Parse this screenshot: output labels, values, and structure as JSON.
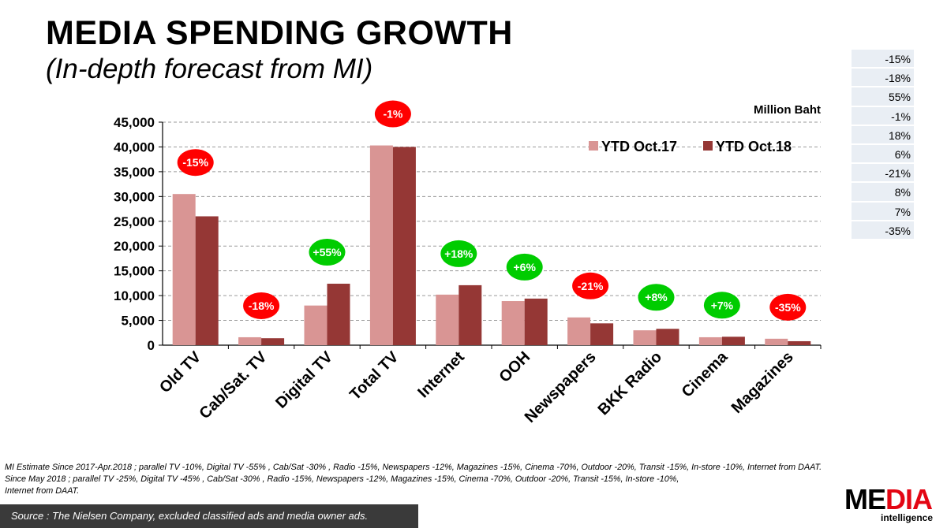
{
  "header": {
    "title": "MEDIA SPENDING GROWTH",
    "subtitle": "(In-depth forecast from MI)"
  },
  "side_table": [
    "-15%",
    "-18%",
    "55%",
    "-1%",
    "18%",
    "6%",
    "-21%",
    "8%",
    "7%",
    "-35%"
  ],
  "chart_data": {
    "type": "bar",
    "title": "",
    "unit_label": "Million Baht",
    "categories": [
      "Old TV",
      "Cab/Sat. TV",
      "Digital TV",
      "Total TV",
      "Internet",
      "OOH",
      "Newspapers",
      "BKK Radio",
      "Cinema",
      "Magazines"
    ],
    "series": [
      {
        "name": "YTD Oct.17",
        "color": "#d99594",
        "values": [
          30500,
          1600,
          8000,
          40300,
          10200,
          8900,
          5600,
          3000,
          1600,
          1300
        ]
      },
      {
        "name": "YTD Oct.18",
        "color": "#953735",
        "values": [
          26000,
          1400,
          12400,
          40000,
          12100,
          9400,
          4400,
          3300,
          1700,
          800
        ]
      }
    ],
    "growth_labels": [
      "-15%",
      "-18%",
      "+55%",
      "-1%",
      "+18%",
      "+6%",
      "-21%",
      "+8%",
      "+7%",
      "-35%"
    ],
    "growth_colors": {
      "negative": "#ff0000",
      "positive": "#00cc00"
    },
    "yticks": [
      "0",
      "5,000",
      "10,000",
      "15,000",
      "20,000",
      "25,000",
      "30,000",
      "35,000",
      "40,000",
      "45,000"
    ],
    "ylim": [
      0,
      45000
    ],
    "grid": true,
    "legend_position": "top-right"
  },
  "footnote": {
    "line1": "MI Estimate Since 2017-Apr.2018 ; parallel TV  -10%, Digital TV  -55% , Cab/Sat  -30% , Radio -15%,  Newspapers  -12%, Magazines  -15%, Cinema  -70%, Outdoor  -20%, Transit  -15%, In-store  -10%, Internet from DAAT.",
    "line2": "Since May 2018 ; parallel TV  -25%, Digital TV  -45% , Cab/Sat  -30% , Radio  -15%, Newspapers  -12%, Magazines  -15%, Cinema  -70%, Outdoor  -20%, Transit  -15%, In-store  -10%,",
    "line3": "Internet from DAAT."
  },
  "source": "Source :  The Nielsen Company, excluded  classified  ads  and media owner ads.",
  "logo": {
    "part1": "ME",
    "part2": "DIA",
    "tagline": "intelligence",
    "accent": "#e30613"
  }
}
